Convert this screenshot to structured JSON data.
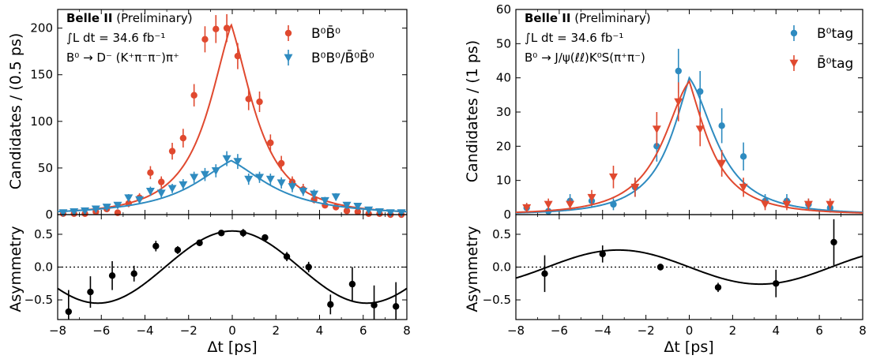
{
  "colors": {
    "red": "#e0492f",
    "blue": "#2e8bc0",
    "black": "#000000"
  },
  "chart_data": [
    {
      "type": "scatter",
      "panel": "left-top",
      "annotation": {
        "experiment": "Belle II",
        "status": "(Preliminary)",
        "lumi": "∫L dt = 34.6 fb⁻¹",
        "decay": "B⁰ → D⁻ (K⁺π⁻π⁻)π⁺"
      },
      "ylabel": "Candidates / (0.5 ps)",
      "xlim": [
        -8,
        8
      ],
      "ylim": [
        0,
        220
      ],
      "xticks": [
        -8,
        -6,
        -4,
        -2,
        0,
        2,
        4,
        6,
        8
      ],
      "yticks": [
        0,
        50,
        100,
        150,
        200
      ],
      "legend_position": "top-right",
      "series": [
        {
          "name": "B⁰B̄⁰",
          "color": "#e0492f",
          "marker": "circle",
          "x": [
            -7.75,
            -7.25,
            -6.75,
            -6.25,
            -5.75,
            -5.25,
            -4.75,
            -4.25,
            -3.75,
            -3.25,
            -2.75,
            -2.25,
            -1.75,
            -1.25,
            -0.75,
            -0.25,
            0.25,
            0.75,
            1.25,
            1.75,
            2.25,
            2.75,
            3.25,
            3.75,
            4.25,
            4.75,
            5.25,
            5.75,
            6.25,
            6.75,
            7.25,
            7.75
          ],
          "y": [
            1,
            1,
            1,
            3,
            6,
            2,
            12,
            18,
            45,
            35,
            68,
            82,
            128,
            188,
            199,
            200,
            170,
            124,
            121,
            77,
            55,
            35,
            27,
            16,
            10,
            8,
            4,
            3,
            1,
            1,
            0,
            0
          ],
          "err": [
            1,
            1,
            1,
            2,
            3,
            2,
            4,
            5,
            7,
            6,
            9,
            10,
            12,
            14,
            15,
            15,
            14,
            12,
            11,
            9,
            8,
            6,
            6,
            4,
            3,
            3,
            2,
            2,
            1,
            1,
            1,
            1
          ],
          "fit": {
            "type": "exp-decay-peak",
            "peak": 204,
            "tau": 1.52,
            "x0": -0.05
          }
        },
        {
          "name": "B⁰B⁰/B̄⁰B̄⁰",
          "color": "#2e8bc0",
          "marker": "triangle-down",
          "x": [
            -7.75,
            -7.25,
            -6.75,
            -6.25,
            -5.75,
            -5.25,
            -4.75,
            -4.25,
            -3.75,
            -3.25,
            -2.75,
            -2.25,
            -1.75,
            -1.25,
            -0.75,
            -0.25,
            0.25,
            0.75,
            1.25,
            1.75,
            2.25,
            2.75,
            3.25,
            3.75,
            4.25,
            4.75,
            5.25,
            5.75,
            6.25,
            6.75,
            7.25,
            7.75
          ],
          "y": [
            2,
            3,
            4,
            6,
            8,
            10,
            18,
            16,
            25,
            23,
            28,
            32,
            40,
            43,
            47,
            60,
            57,
            38,
            40,
            38,
            34,
            30,
            25,
            22,
            15,
            19,
            10,
            9,
            5,
            3,
            2,
            2
          ],
          "err": [
            1,
            2,
            2,
            2,
            3,
            3,
            4,
            4,
            5,
            5,
            5,
            6,
            6,
            7,
            7,
            8,
            8,
            6,
            6,
            6,
            6,
            6,
            5,
            5,
            4,
            4,
            3,
            3,
            2,
            2,
            1,
            1
          ],
          "fit": {
            "type": "exp-decay-peak",
            "peak": 58,
            "tau": 2.5,
            "x0": -0.05
          }
        }
      ]
    },
    {
      "type": "scatter",
      "panel": "left-bottom",
      "xlabel": "Δt [ps]",
      "ylabel": "Asymmetry",
      "xlim": [
        -8,
        8
      ],
      "ylim": [
        -0.8,
        0.8
      ],
      "xticks": [
        -8,
        -6,
        -4,
        -2,
        0,
        2,
        4,
        6,
        8
      ],
      "yticks": [
        -0.5,
        0.0,
        0.5
      ],
      "tick_labels": [
        "−0.5",
        "0.0",
        "0.5"
      ],
      "series": [
        {
          "name": "",
          "color": "#000000",
          "marker": "circle",
          "x": [
            -7.5,
            -6.5,
            -5.5,
            -4.5,
            -3.5,
            -2.5,
            -1.5,
            -0.5,
            0.5,
            1.5,
            2.5,
            3.5,
            4.5,
            5.5,
            6.5,
            7.5
          ],
          "y": [
            -0.68,
            -0.38,
            -0.13,
            -0.1,
            0.32,
            0.26,
            0.37,
            0.52,
            0.52,
            0.45,
            0.16,
            0.0,
            -0.57,
            -0.26,
            -0.58,
            -0.6
          ],
          "err": [
            0.33,
            0.24,
            0.22,
            0.12,
            0.08,
            0.06,
            0.05,
            0.03,
            0.06,
            0.05,
            0.07,
            0.08,
            0.15,
            0.26,
            0.3,
            0.37
          ],
          "fit": {
            "type": "cosine",
            "amplitude": 0.55,
            "omega": 0.51,
            "phase": 0.0
          }
        }
      ]
    },
    {
      "type": "scatter",
      "panel": "right-top",
      "annotation": {
        "experiment": "Belle II",
        "status": "(Preliminary)",
        "lumi": "∫L dt = 34.6 fb⁻¹",
        "decay": "B⁰ → J/ψ(ℓℓ)K⁰S(π⁺π⁻)"
      },
      "ylabel": "Candidates / (1 ps)",
      "xlim": [
        -8,
        8
      ],
      "ylim": [
        0,
        60
      ],
      "xticks": [
        -8,
        -6,
        -4,
        -2,
        0,
        2,
        4,
        6,
        8
      ],
      "yticks": [
        0,
        10,
        20,
        30,
        40,
        50,
        60
      ],
      "legend_position": "top-right",
      "series": [
        {
          "name": "B⁰tag",
          "color": "#2e8bc0",
          "marker": "circle",
          "x": [
            -7.5,
            -6.5,
            -5.5,
            -4.5,
            -3.5,
            -2.5,
            -1.5,
            -0.5,
            0.5,
            1.5,
            2.5,
            3.5,
            4.5,
            5.5,
            6.5
          ],
          "y": [
            2,
            1,
            4,
            4,
            3,
            8,
            20,
            42,
            36,
            26,
            17,
            4,
            4,
            3,
            2
          ],
          "err": [
            1.4,
            1.0,
            2.0,
            2.0,
            1.7,
            2.8,
            4.5,
            6.5,
            6.0,
            5.1,
            4.1,
            2.0,
            2.0,
            1.7,
            1.4
          ],
          "fit": {
            "type": "exp-decay-peak",
            "peak": 40,
            "tau": 1.5,
            "x0": 0.0,
            "shift": 0.15
          }
        },
        {
          "name": "B̄⁰tag",
          "color": "#e0492f",
          "marker": "triangle-down",
          "x": [
            -7.5,
            -6.5,
            -5.5,
            -4.5,
            -3.5,
            -2.5,
            -1.5,
            -0.5,
            0.5,
            1.5,
            2.5,
            3.5,
            4.5,
            5.5,
            6.5
          ],
          "y": [
            2,
            3,
            3,
            5,
            11,
            8,
            25,
            33,
            25,
            15,
            8,
            3,
            3,
            3,
            3
          ],
          "err": [
            1.4,
            1.7,
            1.7,
            2.2,
            3.3,
            2.8,
            5.0,
            5.7,
            5.0,
            3.9,
            2.8,
            1.7,
            1.7,
            1.7,
            1.7
          ],
          "fit": {
            "type": "exp-decay-peak",
            "peak": 39,
            "tau": 1.5,
            "x0": 0.0,
            "shift": -0.15
          }
        }
      ]
    },
    {
      "type": "scatter",
      "panel": "right-bottom",
      "xlabel": "Δt [ps]",
      "ylabel": "Asymmetry",
      "xlim": [
        -8,
        8
      ],
      "ylim": [
        -0.8,
        0.8
      ],
      "xticks": [
        -8,
        -6,
        -4,
        -2,
        0,
        2,
        4,
        6,
        8
      ],
      "yticks": [
        -0.5,
        0.0,
        0.5
      ],
      "tick_labels": [
        "−0.5",
        "0.0",
        "0.5"
      ],
      "series": [
        {
          "name": "",
          "color": "#000000",
          "marker": "circle",
          "x": [
            -6.67,
            -4.0,
            -1.33,
            1.33,
            4.0,
            6.67
          ],
          "y": [
            -0.1,
            0.2,
            0.0,
            -0.31,
            -0.25,
            0.38
          ],
          "err": [
            0.28,
            0.13,
            0.05,
            0.07,
            0.21,
            0.35
          ],
          "fit": {
            "type": "sine",
            "amplitude": -0.26,
            "omega": 0.48,
            "phase": 0.0
          }
        }
      ]
    }
  ]
}
